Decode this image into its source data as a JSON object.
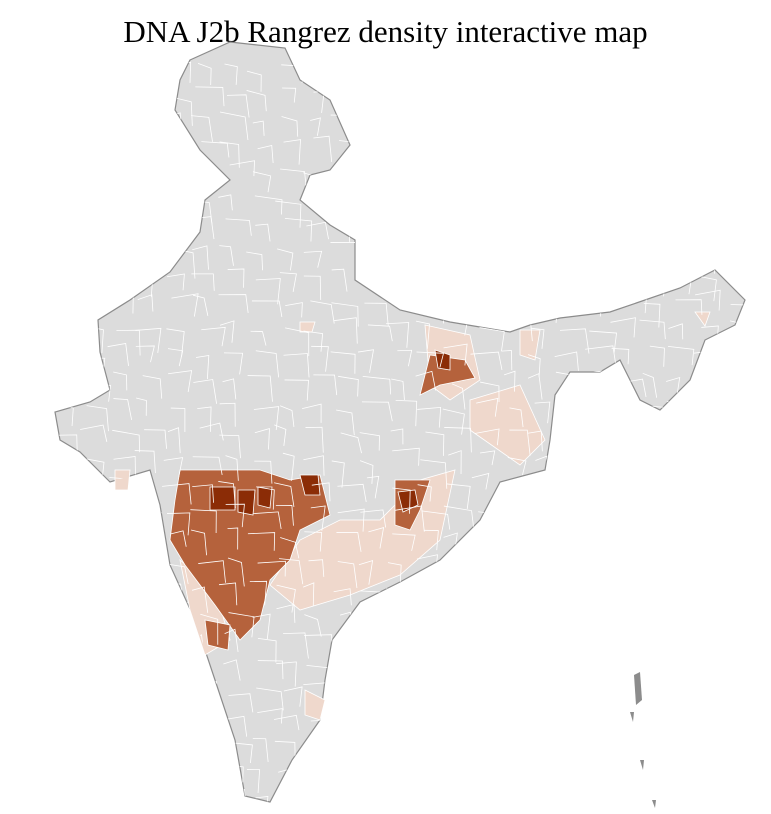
{
  "title": "DNA J2b Rangrez density interactive map",
  "colors": {
    "base": "#dcdcdc",
    "border_internal": "#ffffff",
    "border_state": "#8c8c8c",
    "density_low": "#efd8cc",
    "density_mid": "#b5623c",
    "density_high": "#8b2c06"
  }
}
